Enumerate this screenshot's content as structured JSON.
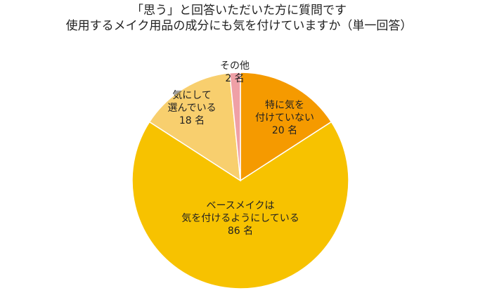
{
  "chart_data": {
    "type": "pie",
    "title_lines": [
      "「思う」と回答いただいた方に質問です",
      "使用するメイク用品の成分にも気を付けていますか（単一回答）"
    ],
    "unit": "名",
    "slices": [
      {
        "label_lines": [
          "特に気を",
          "付けていない"
        ],
        "value": 20,
        "color": "#F59A00"
      },
      {
        "label_lines": [
          "ベースメイクは",
          "気を付けるようにしている"
        ],
        "value": 86,
        "color": "#F7C200"
      },
      {
        "label_lines": [
          "気にして",
          "選んでいる"
        ],
        "value": 18,
        "color": "#F8CF6E"
      },
      {
        "label_lines": [
          "その他"
        ],
        "value": 2,
        "color": "#EFA0A6"
      }
    ]
  }
}
